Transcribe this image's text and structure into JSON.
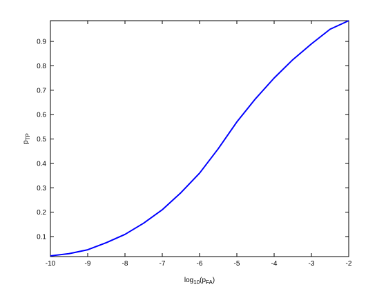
{
  "chart_data": {
    "type": "line",
    "xlabel_parts": [
      "log",
      "10",
      "(p",
      "FA",
      ")"
    ],
    "ylabel_parts": [
      "p",
      "TP"
    ],
    "x": [
      -10,
      -9.5,
      -9,
      -8.5,
      -8,
      -7.5,
      -7,
      -6.5,
      -6,
      -5.5,
      -5,
      -4.5,
      -4,
      -3.5,
      -3,
      -2.5,
      -2
    ],
    "series": [
      {
        "color": "#0000ff",
        "values": [
          0.021,
          0.03,
          0.046,
          0.075,
          0.109,
          0.155,
          0.21,
          0.28,
          0.36,
          0.46,
          0.57,
          0.665,
          0.75,
          0.825,
          0.89,
          0.95,
          0.985
        ]
      }
    ],
    "xlim": [
      -10,
      -2
    ],
    "ylim": [
      0.018,
      0.985
    ],
    "xticks": [
      -10,
      -9,
      -8,
      -7,
      -6,
      -5,
      -4,
      -3,
      -2
    ],
    "yticks": [
      0.1,
      0.2,
      0.3,
      0.4,
      0.5,
      0.6,
      0.7,
      0.8,
      0.9
    ],
    "grid": false
  }
}
